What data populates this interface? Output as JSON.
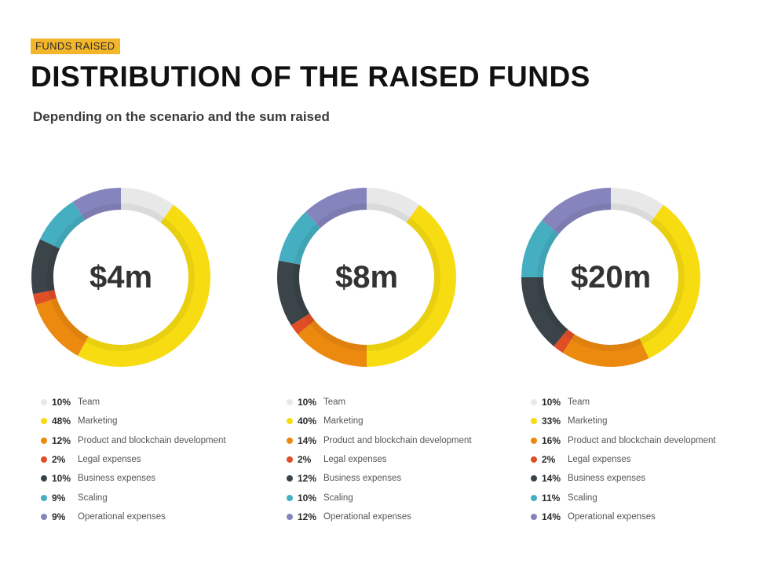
{
  "header": {
    "tag": "FUNDS RAISED",
    "title": "DISTRIBUTION OF THE RAISED FUNDS",
    "subtitle": "Depending on the scenario and the sum raised"
  },
  "categories": [
    "Team",
    "Marketing",
    "Product and blockchain development",
    "Legal expenses",
    "Business expenses",
    "Scaling",
    "Operational expenses"
  ],
  "colors": [
    "#e8e8e8",
    "#f7dc12",
    "#ec8a0f",
    "#e04e26",
    "#3a4449",
    "#45afc1",
    "#8584bd"
  ],
  "chart_data": [
    {
      "type": "pie",
      "center_label": "$4m",
      "labels": [
        "Team",
        "Marketing",
        "Product and blockchain development",
        "Legal expenses",
        "Business expenses",
        "Scaling",
        "Operational expenses"
      ],
      "values": [
        10,
        48,
        12,
        2,
        10,
        9,
        9
      ],
      "value_labels": [
        "10%",
        "48%",
        "12%",
        "2%",
        "10%",
        "9%",
        "9%"
      ]
    },
    {
      "type": "pie",
      "center_label": "$8m",
      "labels": [
        "Team",
        "Marketing",
        "Product and blockchain development",
        "Legal expenses",
        "Business expenses",
        "Scaling",
        "Operational expenses"
      ],
      "values": [
        10,
        40,
        14,
        2,
        12,
        10,
        12
      ],
      "value_labels": [
        "10%",
        "40%",
        "14%",
        "2%",
        "12%",
        "10%",
        "12%"
      ]
    },
    {
      "type": "pie",
      "center_label": "$20m",
      "labels": [
        "Team",
        "Marketing",
        "Product and blockchain development",
        "Legal expenses",
        "Business expenses",
        "Scaling",
        "Operational expenses"
      ],
      "values": [
        10,
        33,
        16,
        2,
        14,
        11,
        14
      ],
      "value_labels": [
        "10%",
        "33%",
        "16%",
        "2%",
        "14%",
        "11%",
        "14%"
      ]
    }
  ]
}
